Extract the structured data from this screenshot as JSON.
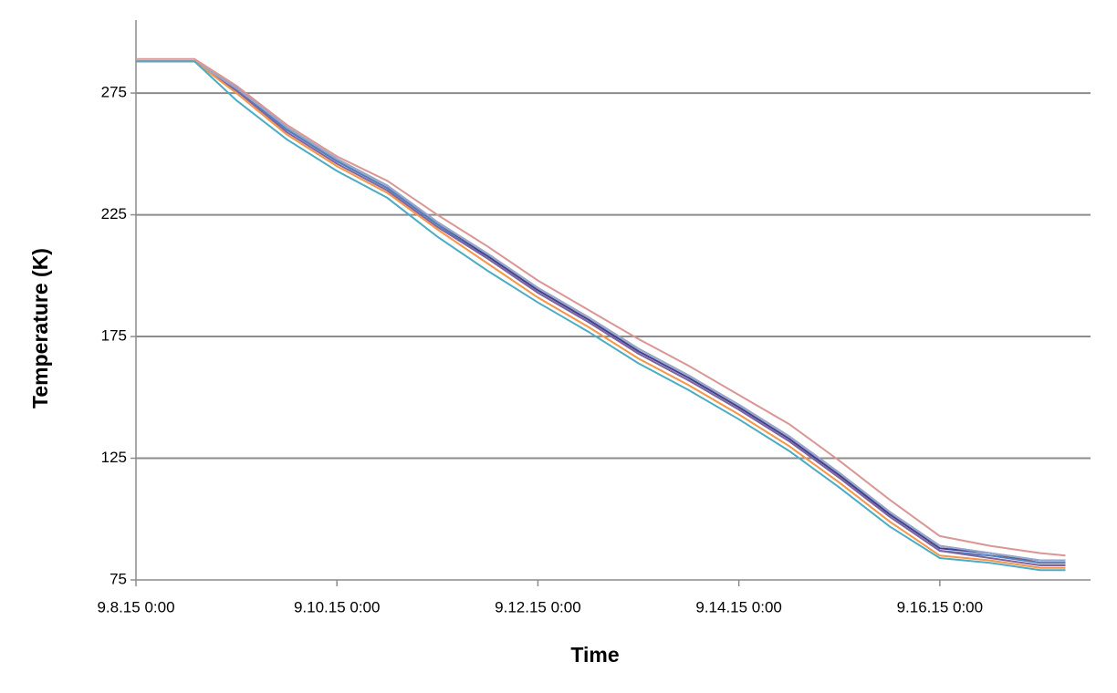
{
  "chart_data": {
    "type": "line",
    "x_label": "Time",
    "y_label": "Temperature (K)",
    "x": [
      "9.8.15 0:00",
      "9.8.15 14:00",
      "9.9.15 0:00",
      "9.9.15 12:00",
      "9.10.15 0:00",
      "9.10.15 12:00",
      "9.11.15 0:00",
      "9.11.15 12:00",
      "9.12.15 0:00",
      "9.12.15 12:00",
      "9.13.15 0:00",
      "9.13.15 12:00",
      "9.14.15 0:00",
      "9.14.15 12:00",
      "9.15.15 0:00",
      "9.15.15 12:00",
      "9.16.15 0:00",
      "9.16.15 12:00",
      "9.17.15 0:00",
      "9.17.15 6:00"
    ],
    "series": [
      {
        "color": "#d99694",
        "values": [
          289,
          289,
          278,
          262,
          249,
          239,
          225,
          212,
          198,
          186,
          174,
          163,
          151,
          139,
          124,
          108,
          93,
          89,
          86,
          85
        ]
      },
      {
        "color": "#953735",
        "values": [
          288,
          288,
          277,
          261,
          248,
          237,
          222,
          209,
          195,
          183,
          170,
          159,
          147,
          134,
          119,
          103,
          89,
          86,
          82,
          82
        ]
      },
      {
        "color": "#3f3f8f",
        "values": [
          288,
          288,
          277,
          260,
          247,
          236,
          221,
          208,
          194,
          182,
          169,
          158,
          146,
          133,
          118,
          102,
          88,
          86,
          83,
          83
        ]
      },
      {
        "color": "#4f81bd",
        "values": [
          288,
          288,
          276,
          260,
          247,
          236,
          221,
          207,
          193,
          181,
          168,
          157,
          145,
          132,
          117,
          101,
          87,
          85,
          82,
          82
        ]
      },
      {
        "color": "#8064a2",
        "values": [
          288,
          288,
          276,
          259,
          246,
          235,
          220,
          207,
          193,
          181,
          168,
          157,
          145,
          132,
          117,
          101,
          87,
          84,
          81,
          81
        ]
      },
      {
        "color": "#93a9cf",
        "values": [
          288,
          288,
          277,
          261,
          248,
          237,
          222,
          209,
          195,
          183,
          170,
          159,
          147,
          134,
          119,
          103,
          89,
          86,
          83,
          83
        ]
      },
      {
        "color": "#f79646",
        "values": [
          288,
          288,
          275,
          258,
          245,
          234,
          219,
          205,
          191,
          179,
          166,
          155,
          143,
          130,
          115,
          99,
          85,
          83,
          80,
          80
        ]
      },
      {
        "color": "#4bacc6",
        "values": [
          288,
          288,
          272,
          256,
          243,
          232,
          216,
          202,
          189,
          177,
          164,
          153,
          141,
          128,
          113,
          97,
          84,
          82,
          79,
          79
        ]
      }
    ],
    "xlim": [
      "9.8.15 0:00",
      "9.17.15 12:00"
    ],
    "xticks": [
      "9.8.15 0:00",
      "9.10.15 0:00",
      "9.12.15 0:00",
      "9.14.15 0:00",
      "9.16.15 0:00"
    ],
    "ylim": [
      75,
      305
    ],
    "yticks": [
      75,
      125,
      175,
      225,
      275
    ],
    "grid": true
  }
}
